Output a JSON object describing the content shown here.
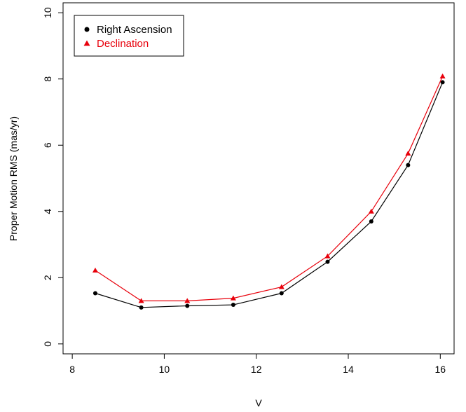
{
  "chart_data": {
    "type": "line",
    "title": "",
    "xlabel": "V",
    "ylabel": "Proper Motion RMS (mas/yr)",
    "xlim": [
      7.8,
      16.3
    ],
    "ylim": [
      -0.3,
      10.3
    ],
    "xticks": [
      "8",
      "10",
      "12",
      "14",
      "16"
    ],
    "yticks": [
      "0",
      "2",
      "4",
      "6",
      "8",
      "10"
    ],
    "grid": false,
    "legend_position": "top-left",
    "x": [
      8.5,
      9.5,
      10.5,
      11.5,
      12.55,
      13.55,
      14.5,
      15.3,
      16.05
    ],
    "series": [
      {
        "name": "Right Ascension",
        "marker": "circle",
        "color": "#000000",
        "values": [
          1.53,
          1.1,
          1.15,
          1.18,
          1.53,
          2.48,
          3.7,
          5.4,
          7.9
        ]
      },
      {
        "name": "Declination",
        "marker": "triangle",
        "color": "#e8000b",
        "values": [
          2.22,
          1.3,
          1.3,
          1.38,
          1.72,
          2.65,
          4.0,
          5.75,
          8.08
        ]
      }
    ]
  }
}
